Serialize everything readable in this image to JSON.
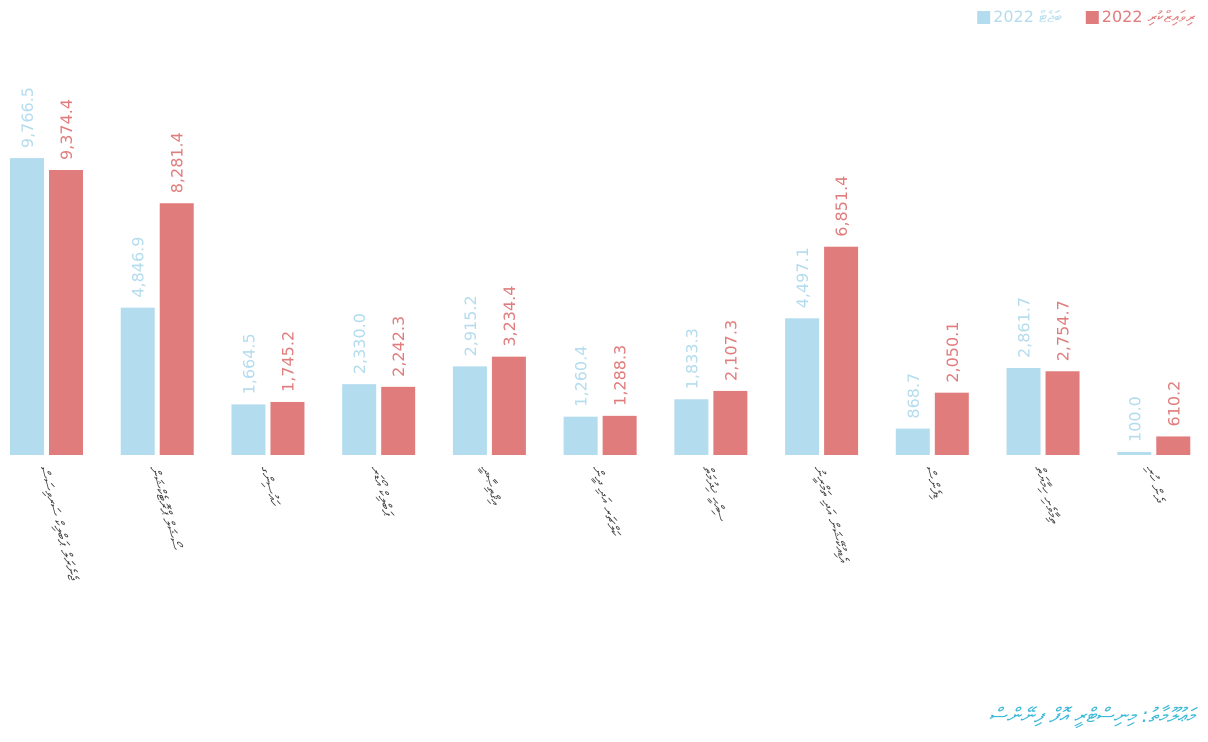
{
  "chart_data": {
    "type": "bar",
    "legend": "top-right",
    "categories": [
      "ޖެނެރަލް ޕަބްލިކް ސަރވިސަސް",
      "ސޯޝަލް ޕްރޮޓެކްޝަން",
      "ހައުސިންގ",
      "ޕަބްލިކް އޯޑަރ",
      "އިޤްތިޞާދީ",
      "ކަލްޗަރ އަދި ދީން",
      "ސިއްޙީ ޚިދުމަތް",
      "އެޑިއުކޭޝަން އަދި ތަމްރީނު",
      "ޑިފެންސް",
      "ތިމާވެށި ހިމާޔަތް",
      "ދެން ހުރި"
    ],
    "series": [
      {
        "name": "2022 ބަޖެޓް",
        "color": "#b3dcee",
        "values": [
          9766.5,
          4846.9,
          1664.5,
          2330.0,
          2915.2,
          1260.4,
          1833.3,
          4497.1,
          868.7,
          2861.7,
          100.0
        ],
        "value_labels": [
          "9,766.5",
          "4,846.9",
          "1,664.5",
          "2,330.0",
          "2,915.2",
          "1,260.4",
          "1,833.3",
          "4,497.1",
          "868.7",
          "2,861.7",
          "100.0"
        ]
      },
      {
        "name": "2022 ރިވައިޒްކުރި",
        "color": "#e07c7c",
        "values": [
          9374.4,
          8281.4,
          1745.2,
          2242.3,
          3234.4,
          1288.3,
          2107.3,
          6851.4,
          2050.1,
          2754.7,
          610.2
        ],
        "value_labels": [
          "9,374.4",
          "8,281.4",
          "1,745.2",
          "2,242.3",
          "3,234.4",
          "1,288.3",
          "2,107.3",
          "6,851.4",
          "2,050.1",
          "2,754.7",
          "610.2"
        ]
      }
    ],
    "ylim": [
      0,
      10000
    ],
    "source": "މަޢުލޫމާތު: މިނިސްޓްރީ އޮފް ފިނޭންސް"
  }
}
